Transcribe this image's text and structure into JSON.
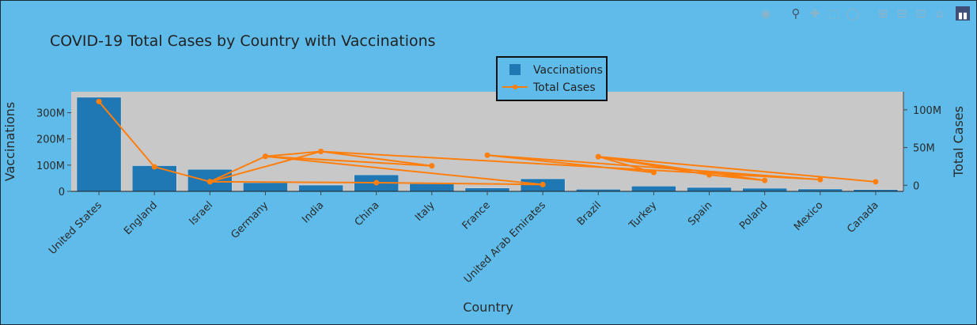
{
  "modebar": {
    "icons": [
      "camera-icon",
      "zoom-icon",
      "pan-icon",
      "box-select-icon",
      "lasso-icon",
      "zoom-in-icon",
      "zoom-out-icon",
      "autoscale-icon",
      "home-icon",
      "plotly-logo-icon"
    ]
  },
  "chart_data": {
    "type": "bar",
    "title": "COVID-19 Total Cases by Country with Vaccinations",
    "xlabel": "Country",
    "ylabel": "Vaccinations",
    "y2label": "Total Cases",
    "ylim": [
      0,
      380000000
    ],
    "y2lim": [
      -8000000,
      124000000
    ],
    "yticks": [
      0,
      100000000,
      200000000,
      300000000
    ],
    "yticklabels": [
      "0",
      "100M",
      "200M",
      "300M"
    ],
    "y2ticks": [
      0,
      50000000,
      100000000
    ],
    "y2ticklabels": [
      "0",
      "50M",
      "100M"
    ],
    "categories": [
      "United States",
      "England",
      "Israel",
      "Germany",
      "India",
      "China",
      "Italy",
      "France",
      "United Arab Emirates",
      "Brazil",
      "Turkey",
      "Spain",
      "Poland",
      "Mexico",
      "Canada"
    ],
    "legend_position": "top-center",
    "colors": {
      "background": "#5fbbe9",
      "plot_bg": "#c8c8c8",
      "bar": "#1f77b4",
      "line": "#ff7f0e"
    },
    "series": [
      {
        "name": "Vaccinations",
        "kind": "bar",
        "axis": "y",
        "values": [
          359000000,
          98000000,
          84000000,
          33000000,
          24000000,
          63000000,
          29000000,
          13000000,
          48000000,
          8000000,
          20000000,
          15000000,
          12000000,
          9000000,
          7000000
        ]
      },
      {
        "name": "Total Cases",
        "kind": "line",
        "axis": "y2",
        "points": [
          {
            "x": "United States",
            "y": 111000000
          },
          {
            "x": "England",
            "y": 24500000
          },
          {
            "x": "Israel",
            "y": 4800000
          },
          {
            "x": "Germany",
            "y": 38400000
          },
          {
            "x": "India",
            "y": 44900000
          },
          {
            "x": "Italy",
            "y": 25800000
          },
          {
            "x": "Germany",
            "y": 38400000
          },
          {
            "x": "United Arab Emirates",
            "y": 1050000
          },
          {
            "x": "China",
            "y": 3500000
          },
          {
            "x": "Israel",
            "y": 4800000
          },
          {
            "x": "India",
            "y": 44900000
          },
          {
            "x": "Mexico",
            "y": 7600000
          },
          {
            "x": "France",
            "y": 39900000
          },
          {
            "x": "Turkey",
            "y": 17000000
          },
          {
            "x": "Brazil",
            "y": 38000000
          },
          {
            "x": "Spain",
            "y": 13800000
          },
          {
            "x": "Poland",
            "y": 6500000
          },
          {
            "x": "Brazil",
            "y": 38000000
          },
          {
            "x": "Canada",
            "y": 4700000
          }
        ]
      }
    ]
  }
}
